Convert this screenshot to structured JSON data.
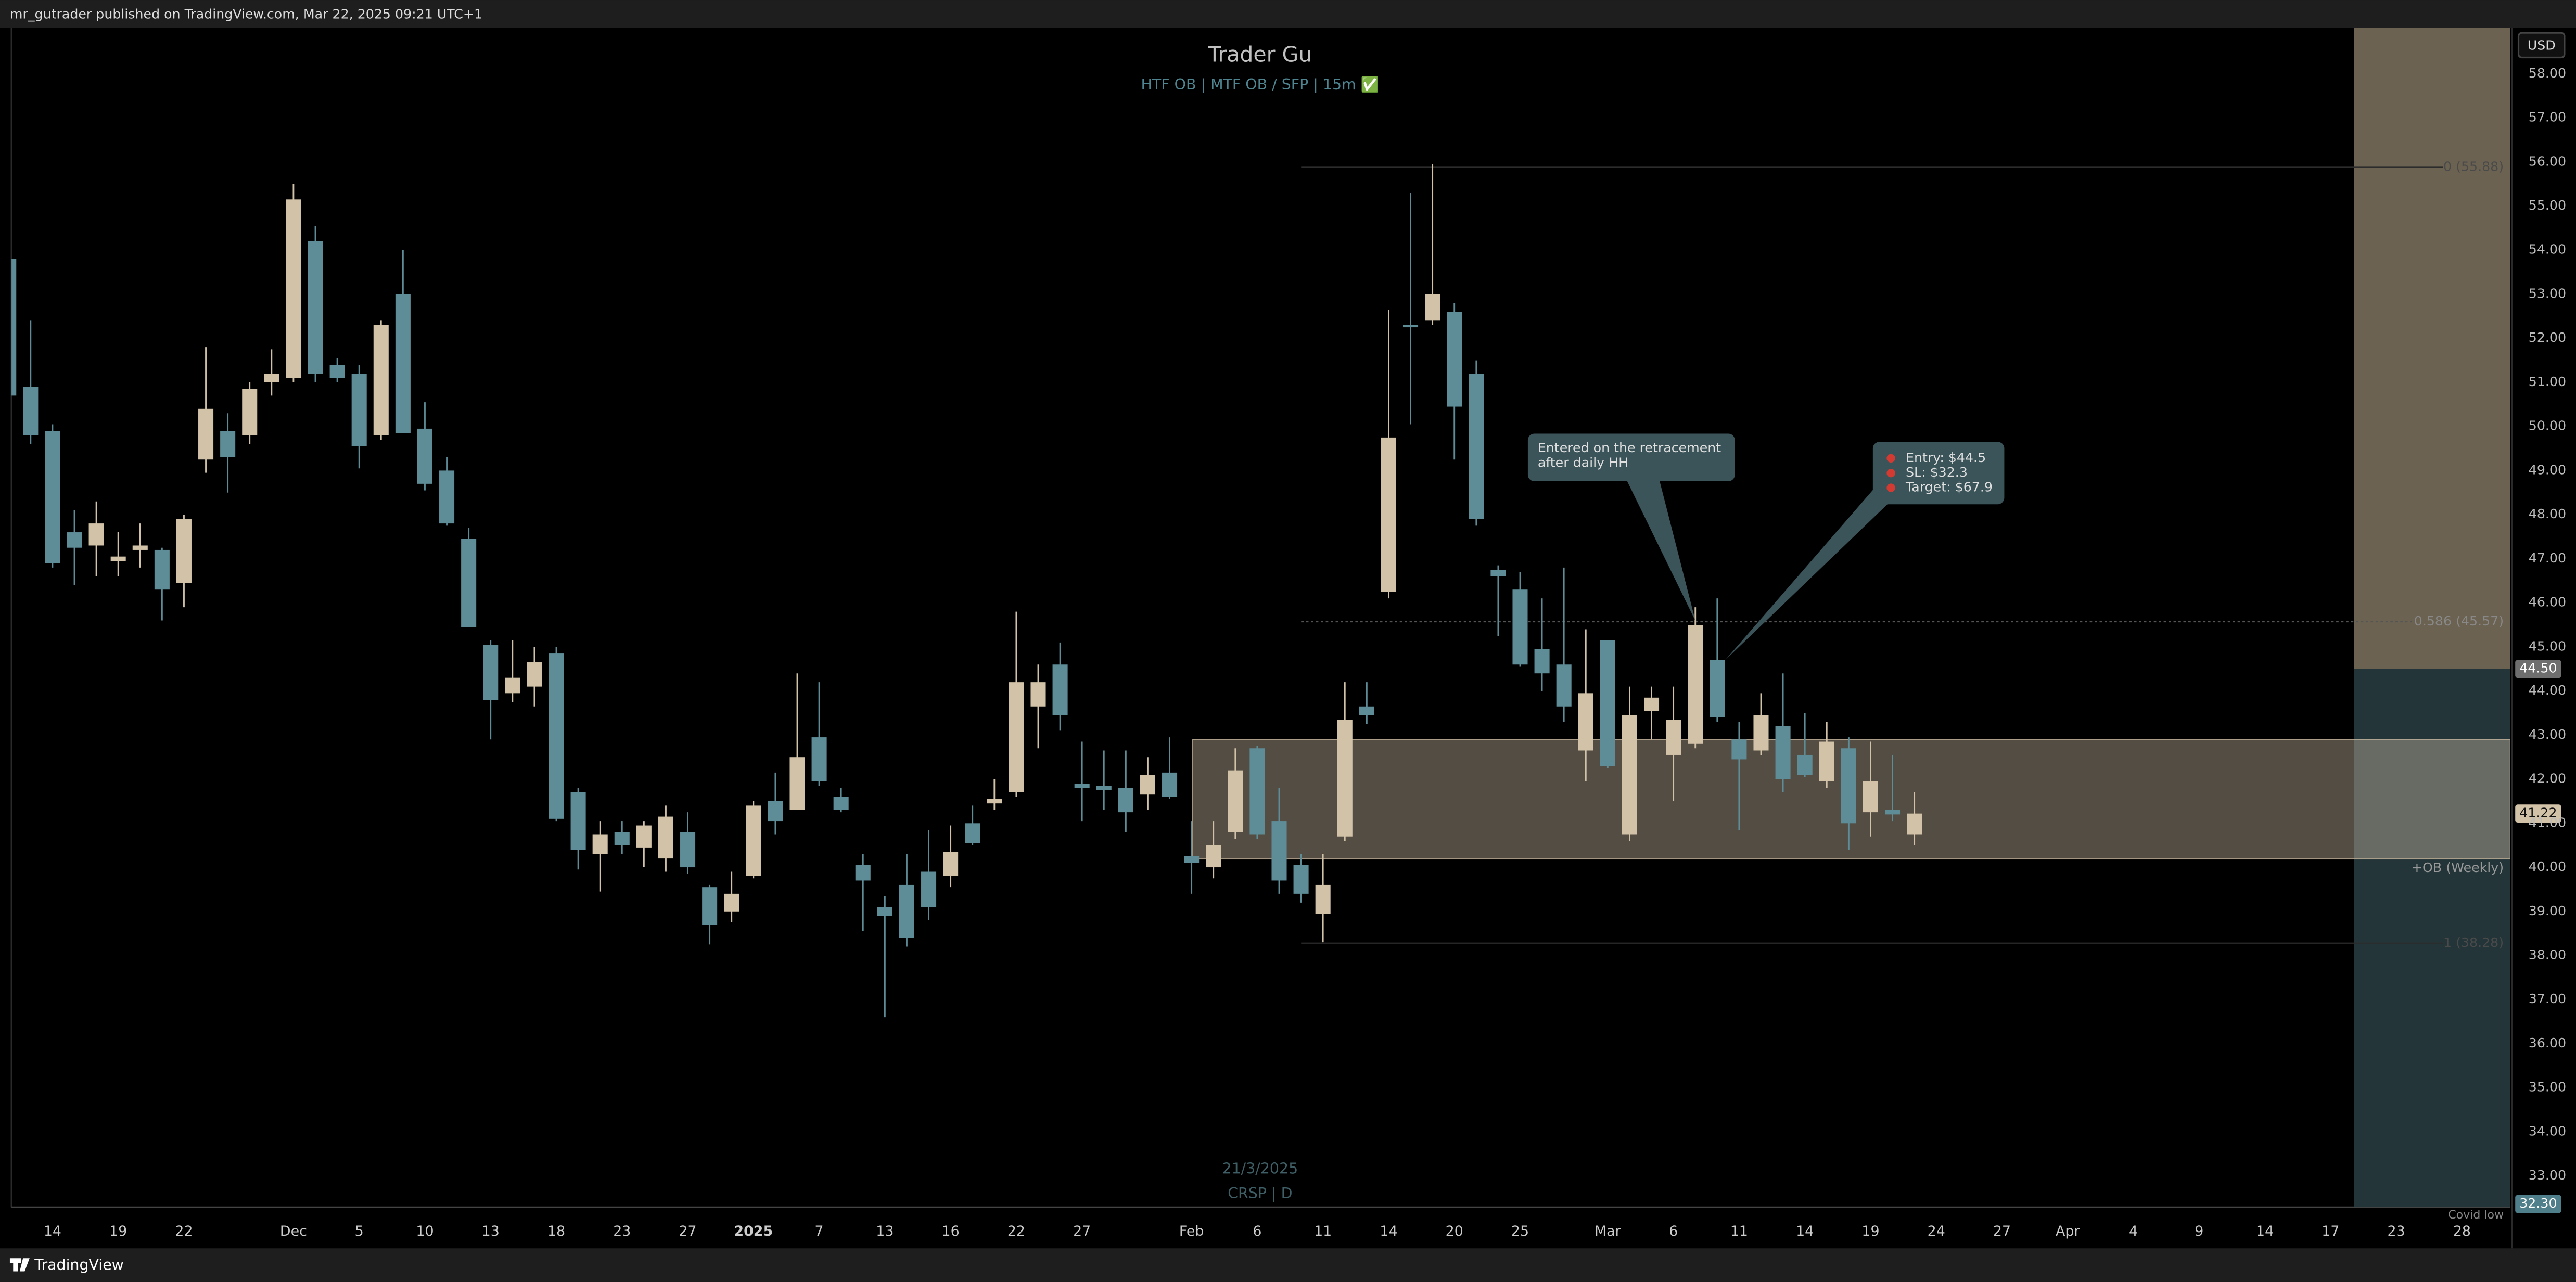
{
  "header": {
    "text": "mr_gutrader published on TradingView.com, Mar 22, 2025 09:21 UTC+1"
  },
  "footer": {
    "brand": "TradingView"
  },
  "chart_data": {
    "type": "candlestick",
    "title": "Trader Gu",
    "subtitle": "HTF OB  |  MTF OB / SFP  |  15m ✅",
    "watermark": [
      "21/3/2025",
      "CRSP | D"
    ],
    "currency": "USD",
    "up_color": "#d2c3a8",
    "down_color": "#5e8d98",
    "categories": [
      null,
      null,
      "14",
      null,
      null,
      "19",
      null,
      null,
      "22",
      null,
      null,
      null,
      null,
      "Dec",
      null,
      null,
      "5",
      null,
      null,
      "10",
      null,
      null,
      "13",
      null,
      null,
      "18",
      null,
      null,
      "23",
      null,
      null,
      "27",
      null,
      null,
      "2025",
      null,
      null,
      "7",
      null,
      null,
      "13",
      null,
      null,
      "16",
      null,
      null,
      "22",
      null,
      null,
      "27",
      null,
      null,
      null,
      null,
      "Feb",
      null,
      null,
      "6",
      null,
      null,
      "11",
      null,
      null,
      "14",
      null,
      null,
      "20",
      null,
      null,
      "25",
      null,
      null,
      null,
      "Mar",
      null,
      null,
      "6",
      null,
      null,
      "11",
      null,
      null,
      "14",
      null,
      null,
      "19",
      null,
      null,
      "24",
      null,
      null,
      "27",
      null,
      null,
      "Apr",
      null,
      null,
      "4",
      null,
      null,
      "9",
      null,
      null,
      "14",
      null,
      null,
      "17",
      null,
      null,
      "23",
      null,
      null,
      "28",
      null,
      null
    ],
    "open": [
      53.8,
      50.9,
      49.9,
      47.6,
      47.3,
      46.95,
      47.2,
      47.2,
      46.45,
      49.25,
      49.9,
      49.8,
      51.0,
      51.1,
      54.2,
      51.4,
      51.2,
      49.8,
      53.0,
      49.95,
      49.0,
      47.45,
      45.05,
      43.95,
      44.1,
      44.85,
      41.7,
      40.3,
      40.8,
      40.45,
      40.2,
      40.8,
      39.55,
      39.0,
      39.8,
      41.5,
      41.3,
      42.95,
      41.6,
      40.05,
      39.1,
      39.6,
      39.9,
      39.8,
      41.0,
      41.45,
      41.7,
      43.65,
      44.6,
      41.9,
      41.85,
      41.8,
      41.65,
      42.15,
      40.25,
      40.0,
      40.8,
      42.7,
      41.05,
      40.05,
      38.95,
      40.7,
      43.65,
      46.25,
      52.3,
      52.4,
      52.6,
      51.2,
      46.75,
      46.3,
      44.95,
      44.6,
      42.65,
      45.15,
      40.75,
      43.55,
      42.55,
      42.8,
      44.7,
      42.9,
      42.65,
      43.2,
      42.55,
      41.95,
      42.7,
      41.25,
      41.3,
      40.75,
      null,
      null,
      null,
      null,
      null,
      null,
      null,
      null,
      null,
      null,
      null,
      null,
      null,
      null,
      null,
      null,
      null,
      null,
      null,
      null,
      null,
      null,
      null,
      null,
      null,
      null,
      null
    ],
    "high": [
      54.0,
      52.4,
      50.05,
      48.1,
      48.3,
      47.6,
      47.8,
      47.25,
      48.0,
      51.8,
      50.3,
      51.0,
      51.75,
      55.5,
      54.55,
      51.55,
      51.4,
      52.4,
      54.0,
      50.55,
      49.3,
      47.7,
      45.15,
      45.15,
      45.0,
      45.0,
      41.8,
      41.05,
      41.05,
      41.05,
      41.4,
      41.25,
      39.6,
      39.9,
      41.5,
      42.15,
      44.4,
      44.2,
      41.8,
      40.3,
      39.35,
      40.3,
      40.85,
      40.95,
      41.4,
      42.0,
      45.8,
      44.6,
      45.1,
      42.85,
      42.65,
      42.65,
      42.5,
      42.95,
      41.05,
      41.05,
      42.7,
      42.75,
      41.8,
      40.3,
      40.3,
      44.2,
      44.2,
      52.65,
      55.3,
      55.95,
      52.8,
      51.5,
      46.85,
      46.7,
      46.1,
      46.8,
      45.4,
      45.15,
      44.1,
      44.1,
      44.1,
      45.9,
      46.1,
      43.3,
      43.95,
      44.4,
      43.5,
      43.3,
      42.95,
      42.85,
      42.55,
      41.7,
      null,
      null,
      null,
      null,
      null,
      null,
      null,
      null,
      null,
      null,
      null,
      null,
      null,
      null,
      null,
      null,
      null,
      null,
      null,
      null,
      null,
      null,
      null,
      null,
      null,
      null,
      null
    ],
    "low": [
      50.5,
      49.6,
      46.8,
      46.4,
      46.6,
      46.6,
      46.8,
      45.6,
      45.9,
      48.95,
      48.5,
      49.6,
      50.7,
      51.0,
      51.0,
      51.0,
      49.05,
      49.7,
      49.85,
      48.55,
      47.75,
      45.45,
      42.9,
      43.75,
      43.65,
      41.05,
      39.95,
      39.45,
      40.3,
      40.0,
      39.9,
      39.85,
      38.25,
      38.75,
      39.75,
      40.75,
      41.3,
      41.85,
      41.25,
      38.55,
      36.6,
      38.2,
      38.8,
      39.55,
      40.5,
      41.3,
      41.6,
      42.7,
      43.1,
      41.05,
      41.3,
      40.8,
      41.3,
      41.55,
      39.4,
      39.75,
      40.65,
      40.65,
      39.4,
      39.2,
      38.3,
      40.6,
      43.25,
      46.1,
      50.05,
      52.3,
      49.25,
      47.75,
      45.25,
      44.55,
      44.0,
      43.3,
      41.95,
      42.25,
      40.6,
      42.9,
      41.5,
      42.7,
      43.3,
      40.85,
      42.55,
      41.7,
      42.05,
      41.8,
      40.4,
      40.7,
      41.05,
      40.5,
      null,
      null,
      null,
      null,
      null,
      null,
      null,
      null,
      null,
      null,
      null,
      null,
      null,
      null,
      null,
      null,
      null,
      null,
      null,
      null,
      null,
      null,
      null,
      null,
      null,
      null,
      null
    ],
    "close": [
      50.7,
      49.8,
      46.9,
      47.25,
      47.8,
      47.05,
      47.3,
      46.3,
      47.9,
      50.4,
      49.3,
      50.85,
      51.2,
      55.15,
      51.2,
      51.1,
      49.55,
      52.3,
      49.85,
      48.7,
      47.8,
      45.45,
      43.8,
      44.3,
      44.65,
      41.1,
      40.4,
      40.75,
      40.5,
      40.95,
      41.15,
      40.0,
      38.7,
      39.4,
      41.4,
      41.05,
      42.5,
      41.95,
      41.3,
      39.7,
      38.9,
      38.4,
      39.1,
      40.35,
      40.55,
      41.55,
      44.2,
      44.2,
      43.45,
      41.8,
      41.75,
      41.25,
      42.1,
      41.6,
      40.1,
      40.5,
      42.2,
      40.75,
      39.7,
      39.4,
      39.6,
      43.35,
      43.45,
      49.75,
      52.25,
      53.0,
      50.45,
      47.9,
      46.6,
      44.6,
      44.4,
      43.65,
      43.95,
      42.3,
      43.45,
      43.85,
      43.35,
      45.5,
      43.4,
      42.45,
      43.45,
      42.0,
      42.1,
      42.85,
      41.0,
      41.95,
      41.2,
      41.22,
      null,
      null,
      null,
      null,
      null,
      null,
      null,
      null,
      null,
      null,
      null,
      null,
      null,
      null,
      null,
      null,
      null,
      null,
      null,
      null,
      null,
      null,
      null,
      null,
      null,
      null,
      null
    ],
    "ylim": [
      32.29,
      59.04
    ],
    "yticks": [
      {
        "value": 33,
        "label": "33.00"
      },
      {
        "value": 34,
        "label": "34.00"
      },
      {
        "value": 35,
        "label": "35.00"
      },
      {
        "value": 36,
        "label": "36.00"
      },
      {
        "value": 37,
        "label": "37.00"
      },
      {
        "value": 38,
        "label": "38.00"
      },
      {
        "value": 39,
        "label": "39.00"
      },
      {
        "value": 40,
        "label": "40.00"
      },
      {
        "value": 41,
        "label": "41.00"
      },
      {
        "value": 42,
        "label": "42.00"
      },
      {
        "value": 43,
        "label": "43.00"
      },
      {
        "value": 44,
        "label": "44.00"
      },
      {
        "value": 45,
        "label": "45.00"
      },
      {
        "value": 46,
        "label": "46.00"
      },
      {
        "value": 47,
        "label": "47.00"
      },
      {
        "value": 48,
        "label": "48.00"
      },
      {
        "value": 49,
        "label": "49.00"
      },
      {
        "value": 50,
        "label": "50.00"
      },
      {
        "value": 51,
        "label": "51.00"
      },
      {
        "value": 52,
        "label": "52.00"
      },
      {
        "value": 53,
        "label": "53.00"
      },
      {
        "value": 54,
        "label": "54.00"
      },
      {
        "value": 55,
        "label": "55.00"
      },
      {
        "value": 56,
        "label": "56.00"
      },
      {
        "value": 57,
        "label": "57.00"
      },
      {
        "value": 58,
        "label": "58.00"
      }
    ],
    "grid": false,
    "last_price": {
      "value": 41.22,
      "label": "41.22"
    },
    "order_block": {
      "label": "+OB (Weekly)",
      "top": 42.9,
      "bottom": 40.2,
      "color": "#c8b89f"
    },
    "fib_levels": [
      {
        "value": 55.88,
        "label": "0 (55.88)"
      },
      {
        "value": 45.57,
        "label": "0.586 (45.57)"
      },
      {
        "value": 38.28,
        "label": "1 (38.28)"
      }
    ],
    "position": {
      "entry": {
        "value": 44.5,
        "label": "44.50"
      },
      "stop": {
        "value": 32.3,
        "label": "32.30"
      },
      "target": 67.9,
      "profit_color": "#6b6251",
      "loss_color": "#233538"
    },
    "annotations": [
      {
        "lines": [
          "Entered on the retracement",
          "after daily HH"
        ]
      },
      {
        "lines": [
          "Entry: $44.5",
          "SL: $32.3",
          "Target: $67.9"
        ]
      }
    ],
    "corner_note": "Covid low"
  }
}
